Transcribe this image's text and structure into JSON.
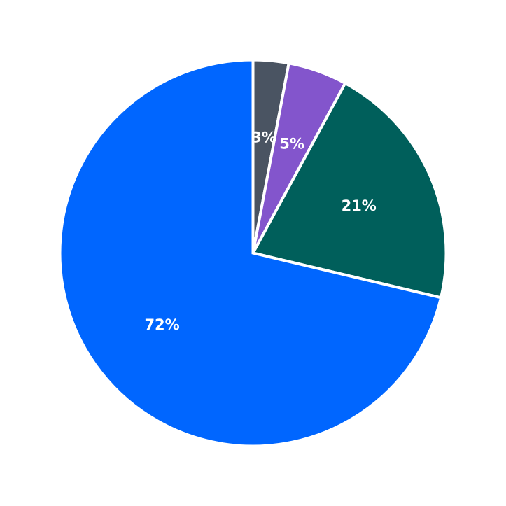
{
  "chart_data": {
    "type": "pie",
    "title": "",
    "start_angle_deg": 90,
    "direction": "clockwise",
    "legend": "none",
    "slices": [
      {
        "label": "3%",
        "value": 3,
        "color": "#4a5462"
      },
      {
        "label": "5%",
        "value": 5,
        "color": "#8355cc"
      },
      {
        "label": "21%",
        "value": 21,
        "color": "#005f5b"
      },
      {
        "label": "72%",
        "value": 72,
        "color": "#0066ff"
      }
    ]
  }
}
